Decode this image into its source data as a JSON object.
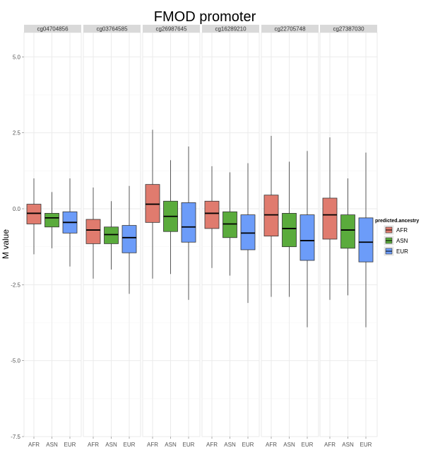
{
  "chart_data": {
    "type": "boxplot",
    "title": "FMOD promoter",
    "ylabel": "M value",
    "xlabel": "",
    "ylim": [
      -7.5,
      5.8
    ],
    "y_ticks": [
      5.0,
      2.5,
      0.0,
      -2.5,
      -5.0,
      -7.5
    ],
    "y_tick_labels": [
      "5.0",
      "2.5",
      "0.0",
      "-2.5",
      "-5.0",
      "-7.5"
    ],
    "categories": [
      "AFR",
      "ASN",
      "EUR"
    ],
    "legend": {
      "title": "predicted.ancestry",
      "placement": "right",
      "entries": [
        "AFR",
        "ASN",
        "EUR"
      ]
    },
    "colors": {
      "AFR": "#e07b6e",
      "ASN": "#5aab3c",
      "EUR": "#6c9cf9"
    },
    "grid": true,
    "panels": [
      {
        "name": "cg04704856",
        "boxes": [
          {
            "group": "AFR",
            "min": -1.5,
            "q1": -0.5,
            "median": -0.15,
            "q3": 0.15,
            "max": 1.0
          },
          {
            "group": "ASN",
            "min": -1.3,
            "q1": -0.6,
            "median": -0.3,
            "q3": -0.15,
            "max": 0.55
          },
          {
            "group": "EUR",
            "min": -1.9,
            "q1": -0.8,
            "median": -0.45,
            "q3": -0.1,
            "max": 1.0
          }
        ]
      },
      {
        "name": "cg03764585",
        "boxes": [
          {
            "group": "AFR",
            "min": -2.3,
            "q1": -1.15,
            "median": -0.7,
            "q3": -0.35,
            "max": 0.7
          },
          {
            "group": "ASN",
            "min": -2.0,
            "q1": -1.15,
            "median": -0.85,
            "q3": -0.6,
            "max": 0.25
          },
          {
            "group": "EUR",
            "min": -2.8,
            "q1": -1.45,
            "median": -0.95,
            "q3": -0.55,
            "max": 0.75
          }
        ]
      },
      {
        "name": "cg26987645",
        "boxes": [
          {
            "group": "AFR",
            "min": -2.3,
            "q1": -0.45,
            "median": 0.15,
            "q3": 0.8,
            "max": 2.6
          },
          {
            "group": "ASN",
            "min": -2.15,
            "q1": -0.75,
            "median": -0.25,
            "q3": 0.25,
            "max": 1.6
          },
          {
            "group": "EUR",
            "min": -3.0,
            "q1": -1.1,
            "median": -0.6,
            "q3": 0.2,
            "max": 2.05
          }
        ]
      },
      {
        "name": "cg16289210",
        "boxes": [
          {
            "group": "AFR",
            "min": -1.95,
            "q1": -0.65,
            "median": -0.15,
            "q3": 0.25,
            "max": 1.4
          },
          {
            "group": "ASN",
            "min": -2.2,
            "q1": -0.95,
            "median": -0.5,
            "q3": -0.1,
            "max": 1.2
          },
          {
            "group": "EUR",
            "min": -3.1,
            "q1": -1.35,
            "median": -0.8,
            "q3": -0.2,
            "max": 1.5
          }
        ]
      },
      {
        "name": "cg22705748",
        "boxes": [
          {
            "group": "AFR",
            "min": -2.9,
            "q1": -0.9,
            "median": -0.2,
            "q3": 0.45,
            "max": 2.4
          },
          {
            "group": "ASN",
            "min": -2.9,
            "q1": -1.25,
            "median": -0.65,
            "q3": -0.15,
            "max": 1.55
          },
          {
            "group": "EUR",
            "min": -3.9,
            "q1": -1.7,
            "median": -1.05,
            "q3": -0.2,
            "max": 1.9
          }
        ]
      },
      {
        "name": "cg27387030",
        "boxes": [
          {
            "group": "AFR",
            "min": -3.0,
            "q1": -1.0,
            "median": -0.2,
            "q3": 0.35,
            "max": 2.35
          },
          {
            "group": "ASN",
            "min": -2.85,
            "q1": -1.3,
            "median": -0.7,
            "q3": -0.2,
            "max": 1.0
          },
          {
            "group": "EUR",
            "min": -3.9,
            "q1": -1.75,
            "median": -1.1,
            "q3": -0.3,
            "max": 1.85
          }
        ]
      }
    ]
  }
}
